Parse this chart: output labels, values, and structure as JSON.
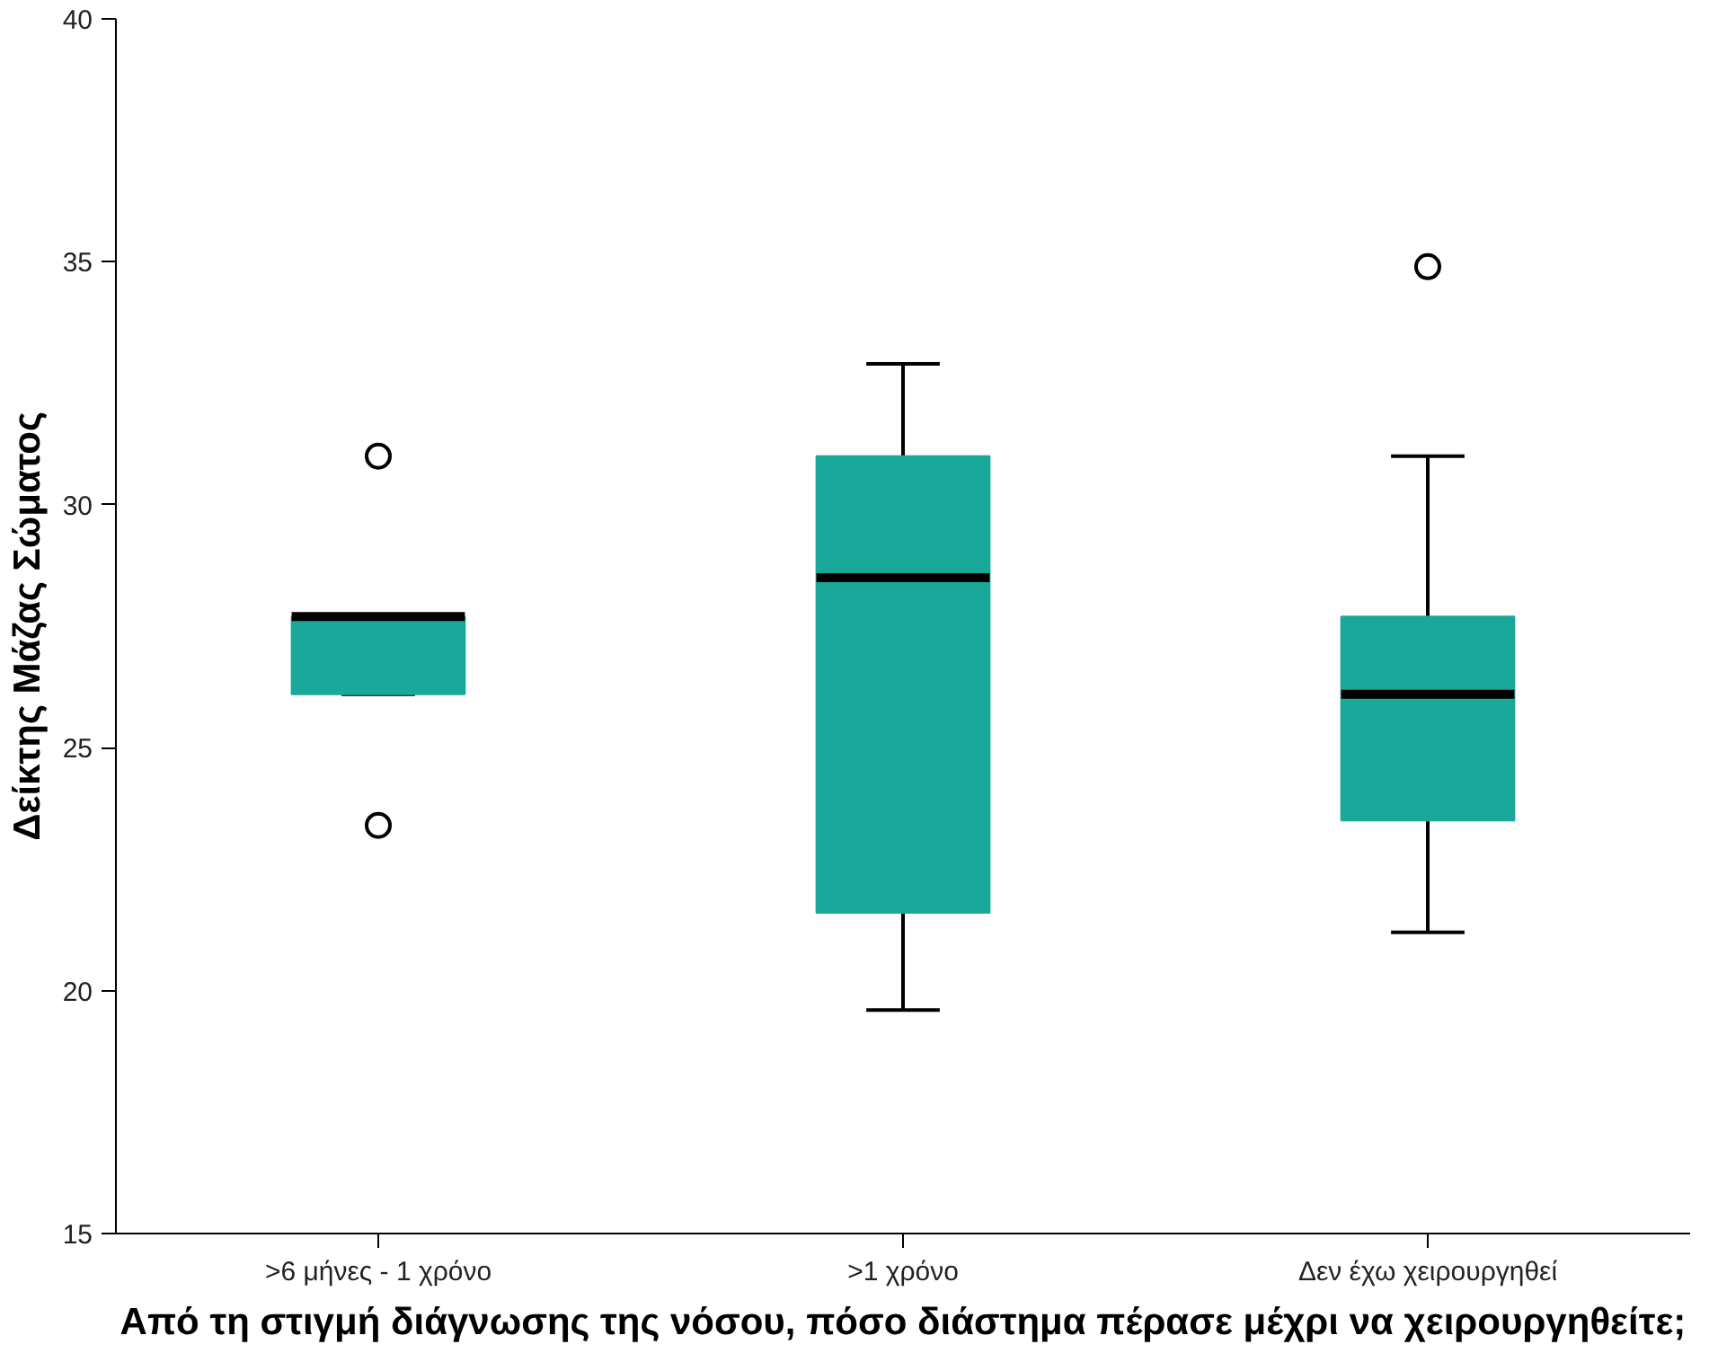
{
  "chart_data": {
    "type": "box",
    "xlabel": "Από τη στιγμή διάγνωσης της νόσου, πόσο διάστημα πέρασε μέχρι να χειρουργηθείτε;",
    "ylabel": "Δείκτης Μάζας Σώματος",
    "categories": [
      ">6 μήνες - 1 χρόνο",
      ">1 χρόνο",
      "Δεν έχω χειρουργηθεί"
    ],
    "color": "#1aa89b",
    "boxes": [
      {
        "low": 26.1,
        "q1": 26.1,
        "median": 27.7,
        "q3": 27.7,
        "high": 27.7,
        "outliers": [
          31.0,
          23.4
        ]
      },
      {
        "low": 19.6,
        "q1": 21.6,
        "median": 28.5,
        "q3": 31.0,
        "high": 32.9
      },
      {
        "low": 21.2,
        "q1": 23.5,
        "median": 26.1,
        "q3": 27.7,
        "high": 31.0,
        "outliers": [
          34.9
        ]
      }
    ],
    "ylim": [
      15,
      40
    ],
    "yticks": [
      15,
      20,
      25,
      30,
      35,
      40
    ],
    "grid": false
  }
}
